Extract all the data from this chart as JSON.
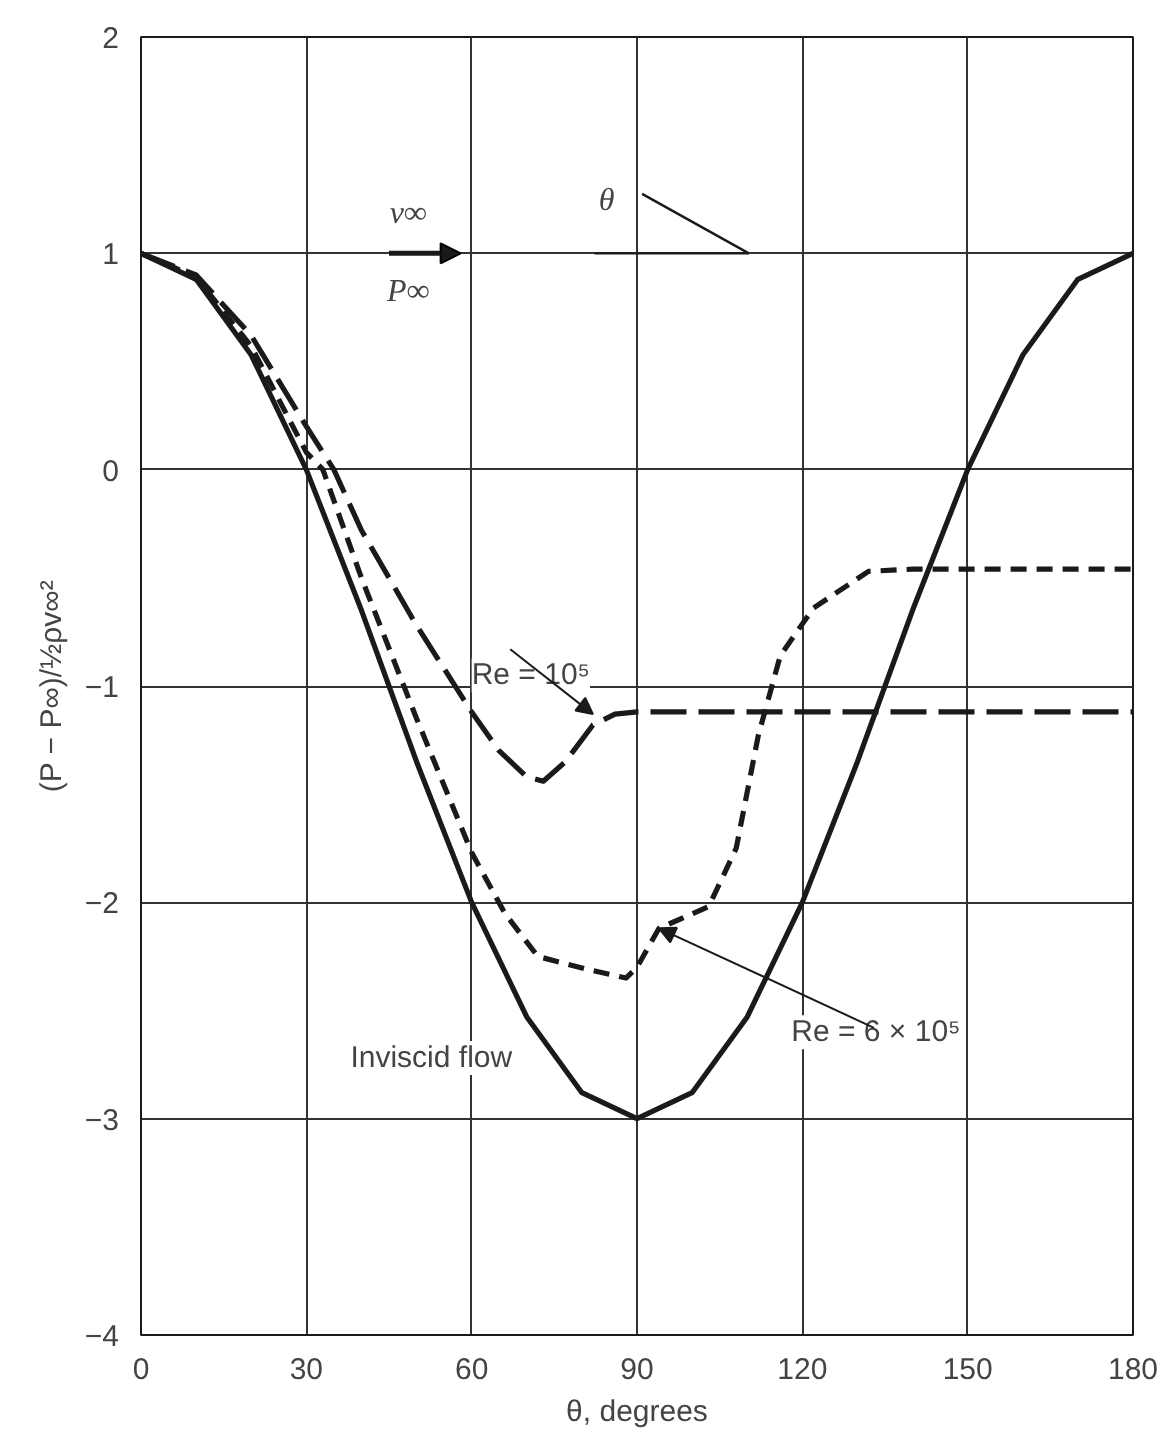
{
  "chart_data": {
    "type": "line",
    "xlabel": "θ, degrees",
    "ylabel": "(P − P∞)/½ρv∞²",
    "xlim": [
      0,
      180
    ],
    "ylim": [
      -4,
      2
    ],
    "xticks": [
      0,
      30,
      60,
      90,
      120,
      150,
      180
    ],
    "yticks": [
      -4,
      -3,
      -2,
      -1,
      0,
      1,
      2
    ],
    "grid": true,
    "series": [
      {
        "name": "Inviscid flow",
        "color": "#1a1a1a",
        "line_style": "solid",
        "x": [
          0,
          10,
          20,
          30,
          40,
          50,
          60,
          70,
          80,
          90,
          100,
          110,
          120,
          130,
          140,
          150,
          160,
          170,
          180
        ],
        "values": [
          1,
          0.88,
          0.53,
          0,
          -0.65,
          -1.35,
          -2,
          -2.53,
          -2.88,
          -3,
          -2.88,
          -2.53,
          -2,
          -1.35,
          -0.65,
          0,
          0.53,
          0.88,
          1
        ]
      },
      {
        "name": "Re = 10⁵",
        "color": "#1a1a1a",
        "line_style": "dashed",
        "x": [
          0,
          10,
          20,
          30,
          35,
          40,
          50,
          60,
          65,
          70,
          73,
          77,
          82,
          86,
          90,
          180
        ],
        "values": [
          1,
          0.9,
          0.62,
          0.2,
          0,
          -0.28,
          -0.72,
          -1.12,
          -1.3,
          -1.42,
          -1.44,
          -1.35,
          -1.18,
          -1.13,
          -1.12,
          -1.12
        ]
      },
      {
        "name": "Re = 6 × 10⁵",
        "color": "#1a1a1a",
        "line_style": "dotted",
        "x": [
          0,
          10,
          20,
          30,
          33,
          40,
          50,
          60,
          66,
          72,
          81,
          88,
          90,
          94,
          103,
          108,
          112,
          116,
          122,
          132,
          140,
          180
        ],
        "values": [
          1,
          0.89,
          0.57,
          0.08,
          0,
          -0.5,
          -1.15,
          -1.77,
          -2.05,
          -2.25,
          -2.31,
          -2.35,
          -2.3,
          -2.12,
          -2.02,
          -1.75,
          -1.23,
          -0.86,
          -0.64,
          -0.47,
          -0.46,
          -0.46
        ]
      }
    ],
    "annotations": [
      "v∞",
      "P∞",
      "θ"
    ]
  }
}
